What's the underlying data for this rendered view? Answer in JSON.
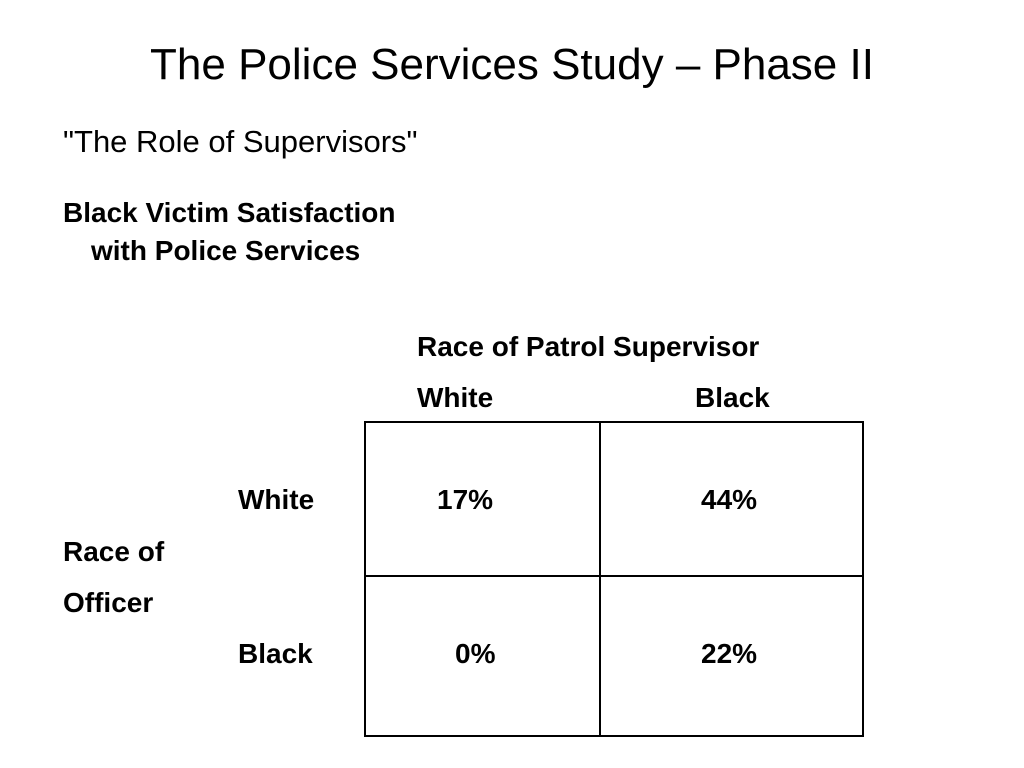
{
  "slide": {
    "title": "The Police Services Study – Phase II",
    "subtitle": "\"The Role of Supervisors\"",
    "heading_line1": "Black Victim Satisfaction",
    "heading_line2": "with Police Services"
  },
  "table": {
    "column_caption": "Race of Patrol Supervisor",
    "columns": [
      "White",
      "Black"
    ],
    "row_caption_line1": "Race of",
    "row_caption_line2": "Officer",
    "rows": [
      {
        "label": "White",
        "values": [
          "17%",
          "44%"
        ]
      },
      {
        "label": "Black",
        "values": [
          "0%",
          "22%"
        ]
      }
    ]
  }
}
